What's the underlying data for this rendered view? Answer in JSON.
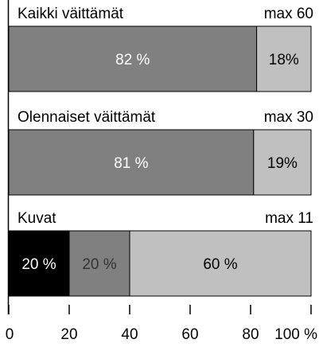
{
  "chart_data": {
    "type": "stacked_hbar",
    "bars": [
      {
        "label": "Kaikki väittämät",
        "max_label": "max 60",
        "values": [
          82,
          18
        ],
        "value_labels": [
          "82 %",
          "18%"
        ],
        "colors": [
          "#808080",
          "#c0c0c0"
        ],
        "label_colors": [
          "#ffffff",
          "#000000"
        ]
      },
      {
        "label": "Olennaiset väittämät",
        "max_label": "max 30",
        "values": [
          81,
          19
        ],
        "value_labels": [
          "81 %",
          "19%"
        ],
        "colors": [
          "#808080",
          "#c0c0c0"
        ],
        "label_colors": [
          "#ffffff",
          "#000000"
        ]
      },
      {
        "label": "Kuvat",
        "max_label": "max 11",
        "values": [
          20,
          20,
          60
        ],
        "value_labels": [
          "20 %",
          "20 %",
          "60 %"
        ],
        "colors": [
          "#000000",
          "#808080",
          "#c0c0c0"
        ],
        "label_colors": [
          "#ffffff",
          "#333333",
          "#000000"
        ]
      }
    ],
    "xlim": [
      0,
      100
    ],
    "xticks": [
      0,
      20,
      40,
      60,
      80,
      {
        "value": 100,
        "label": "100 %"
      }
    ]
  }
}
